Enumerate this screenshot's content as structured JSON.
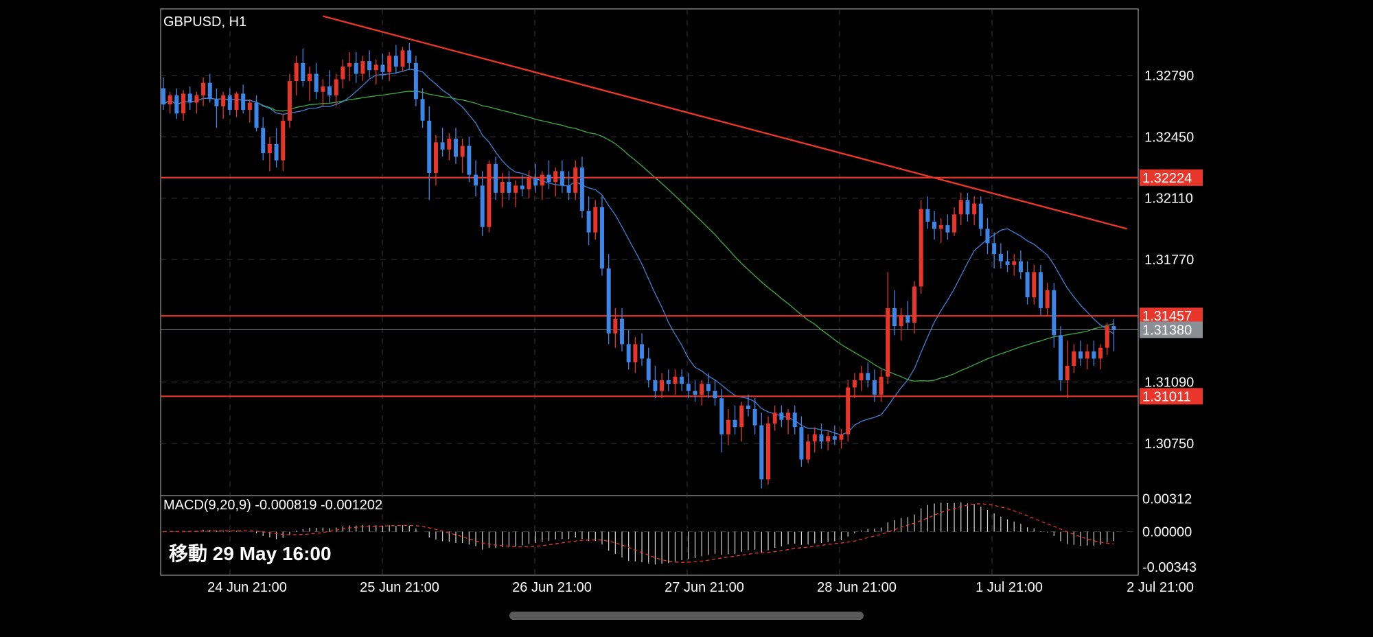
{
  "chart_data": {
    "type": "candlestick",
    "symbol_label": "GBPUSD, H1",
    "x_ticks": [
      "24 Jun 21:00",
      "25 Jun 21:00",
      "26 Jun 21:00",
      "27 Jun 21:00",
      "28 Jun 21:00",
      "1 Jul 21:00",
      "2 Jul 21:00"
    ],
    "price_axis": {
      "ylim": [
        1.3046,
        1.3316
      ],
      "ticks": [
        "1.32790",
        "1.32450",
        "1.32110",
        "1.31770",
        "1.31090",
        "1.30750"
      ],
      "tick_values": [
        1.3279,
        1.3245,
        1.3211,
        1.3177,
        1.3109,
        1.3075
      ]
    },
    "horizontal_levels": [
      {
        "label": "1.32224",
        "value": 1.32224,
        "color": "#e8362b"
      },
      {
        "label": "1.31457",
        "value": 1.31457,
        "color": "#e8362b"
      },
      {
        "label": "1.31011",
        "value": 1.31011,
        "color": "#e8362b"
      }
    ],
    "current_price": {
      "label": "1.31380",
      "value": 1.3138,
      "color": "#8a8f96"
    },
    "trendline": {
      "start": {
        "i": 24,
        "value": 1.3312
      },
      "end": {
        "i": 145,
        "value": 1.3194
      },
      "color": "#e8362b"
    },
    "colors": {
      "bull": "#e8362b",
      "bear": "#3d86e8",
      "ma_fast": "#3f78c8",
      "ma_slow": "#3ea042",
      "grid": "#3a3a3a"
    },
    "candles_ohlc": [
      [
        1.3272,
        1.3278,
        1.326,
        1.3263
      ],
      [
        1.3263,
        1.327,
        1.3258,
        1.3268
      ],
      [
        1.3268,
        1.3272,
        1.3255,
        1.3258
      ],
      [
        1.3258,
        1.3271,
        1.3254,
        1.3269
      ],
      [
        1.3269,
        1.3273,
        1.326,
        1.3264
      ],
      [
        1.3264,
        1.327,
        1.3258,
        1.3268
      ],
      [
        1.3268,
        1.3278,
        1.3262,
        1.3275
      ],
      [
        1.3275,
        1.328,
        1.3264,
        1.3266
      ],
      [
        1.3266,
        1.3272,
        1.325,
        1.3262
      ],
      [
        1.3262,
        1.327,
        1.3255,
        1.3268
      ],
      [
        1.3268,
        1.3272,
        1.3257,
        1.326
      ],
      [
        1.326,
        1.327,
        1.3256,
        1.3269
      ],
      [
        1.3269,
        1.3274,
        1.3258,
        1.326
      ],
      [
        1.326,
        1.3266,
        1.3253,
        1.3264
      ],
      [
        1.3264,
        1.3268,
        1.3248,
        1.325
      ],
      [
        1.325,
        1.3256,
        1.3232,
        1.3236
      ],
      [
        1.3236,
        1.3245,
        1.3226,
        1.3241
      ],
      [
        1.3241,
        1.325,
        1.3228,
        1.3232
      ],
      [
        1.3232,
        1.3258,
        1.3226,
        1.3254
      ],
      [
        1.3254,
        1.328,
        1.325,
        1.3276
      ],
      [
        1.3276,
        1.329,
        1.3268,
        1.3286
      ],
      [
        1.3286,
        1.3294,
        1.3273,
        1.3276
      ],
      [
        1.3276,
        1.3284,
        1.3265,
        1.328
      ],
      [
        1.328,
        1.3286,
        1.3266,
        1.327
      ],
      [
        1.327,
        1.3277,
        1.3262,
        1.3273
      ],
      [
        1.3273,
        1.3282,
        1.3264,
        1.3268
      ],
      [
        1.3268,
        1.328,
        1.3262,
        1.3277
      ],
      [
        1.3277,
        1.3288,
        1.3272,
        1.3284
      ],
      [
        1.3284,
        1.3292,
        1.3276,
        1.3286
      ],
      [
        1.3286,
        1.3292,
        1.3275,
        1.328
      ],
      [
        1.328,
        1.329,
        1.3276,
        1.3287
      ],
      [
        1.3287,
        1.3293,
        1.3278,
        1.3282
      ],
      [
        1.3282,
        1.3288,
        1.3274,
        1.3285
      ],
      [
        1.3285,
        1.3291,
        1.3277,
        1.3281
      ],
      [
        1.3281,
        1.3292,
        1.3276,
        1.329
      ],
      [
        1.329,
        1.3296,
        1.328,
        1.3284
      ],
      [
        1.3284,
        1.3295,
        1.3281,
        1.3293
      ],
      [
        1.3293,
        1.3297,
        1.3282,
        1.3286
      ],
      [
        1.3286,
        1.329,
        1.3262,
        1.3266
      ],
      [
        1.3266,
        1.3272,
        1.325,
        1.3254
      ],
      [
        1.3254,
        1.3262,
        1.321,
        1.3225
      ],
      [
        1.3225,
        1.3246,
        1.3218,
        1.3242
      ],
      [
        1.3242,
        1.325,
        1.3234,
        1.3238
      ],
      [
        1.3238,
        1.3247,
        1.3232,
        1.3244
      ],
      [
        1.3244,
        1.325,
        1.323,
        1.3234
      ],
      [
        1.3234,
        1.3244,
        1.3225,
        1.324
      ],
      [
        1.324,
        1.3245,
        1.322,
        1.3224
      ],
      [
        1.3224,
        1.3232,
        1.3212,
        1.3218
      ],
      [
        1.3218,
        1.3226,
        1.319,
        1.3195
      ],
      [
        1.3195,
        1.3232,
        1.3192,
        1.323
      ],
      [
        1.323,
        1.3234,
        1.321,
        1.3214
      ],
      [
        1.3214,
        1.3225,
        1.3206,
        1.322
      ],
      [
        1.322,
        1.3226,
        1.321,
        1.3214
      ],
      [
        1.3214,
        1.3221,
        1.3206,
        1.3218
      ],
      [
        1.3218,
        1.3224,
        1.3212,
        1.3216
      ],
      [
        1.3216,
        1.3226,
        1.3211,
        1.3222
      ],
      [
        1.3222,
        1.323,
        1.3214,
        1.3218
      ],
      [
        1.3218,
        1.3226,
        1.321,
        1.3224
      ],
      [
        1.3224,
        1.3232,
        1.3216,
        1.322
      ],
      [
        1.322,
        1.3228,
        1.3212,
        1.3226
      ],
      [
        1.3226,
        1.3232,
        1.3214,
        1.3218
      ],
      [
        1.3218,
        1.3226,
        1.321,
        1.3214
      ],
      [
        1.3214,
        1.3232,
        1.321,
        1.3228
      ],
      [
        1.3228,
        1.3234,
        1.32,
        1.3204
      ],
      [
        1.3204,
        1.3212,
        1.3185,
        1.3192
      ],
      [
        1.3192,
        1.321,
        1.3188,
        1.3206
      ],
      [
        1.3206,
        1.3212,
        1.3168,
        1.3172
      ],
      [
        1.3172,
        1.318,
        1.313,
        1.3136
      ],
      [
        1.3136,
        1.315,
        1.3128,
        1.3144
      ],
      [
        1.3144,
        1.315,
        1.3126,
        1.313
      ],
      [
        1.313,
        1.3138,
        1.3116,
        1.312
      ],
      [
        1.312,
        1.3134,
        1.3114,
        1.313
      ],
      [
        1.313,
        1.3136,
        1.3118,
        1.3122
      ],
      [
        1.3122,
        1.3128,
        1.3106,
        1.311
      ],
      [
        1.311,
        1.3118,
        1.31,
        1.3104
      ],
      [
        1.3104,
        1.3114,
        1.31,
        1.311
      ],
      [
        1.311,
        1.3116,
        1.3104,
        1.3108
      ],
      [
        1.3108,
        1.3116,
        1.3102,
        1.3112
      ],
      [
        1.3112,
        1.3116,
        1.3104,
        1.3108
      ],
      [
        1.3108,
        1.3114,
        1.31,
        1.3104
      ],
      [
        1.3104,
        1.311,
        1.3098,
        1.3102
      ],
      [
        1.3102,
        1.311,
        1.3096,
        1.3108
      ],
      [
        1.3108,
        1.3114,
        1.31,
        1.3104
      ],
      [
        1.3104,
        1.311,
        1.3096,
        1.31
      ],
      [
        1.31,
        1.3105,
        1.307,
        1.308
      ],
      [
        1.308,
        1.3094,
        1.3074,
        1.3088
      ],
      [
        1.3088,
        1.3096,
        1.308,
        1.3084
      ],
      [
        1.3084,
        1.3098,
        1.3076,
        1.3096
      ],
      [
        1.3096,
        1.3102,
        1.309,
        1.3094
      ],
      [
        1.3094,
        1.31,
        1.308,
        1.3085
      ],
      [
        1.3085,
        1.3092,
        1.305,
        1.3055
      ],
      [
        1.3055,
        1.309,
        1.3052,
        1.3086
      ],
      [
        1.3086,
        1.3096,
        1.3082,
        1.3092
      ],
      [
        1.3092,
        1.3096,
        1.3084,
        1.3088
      ],
      [
        1.3088,
        1.3094,
        1.308,
        1.3092
      ],
      [
        1.3092,
        1.3096,
        1.308,
        1.3084
      ],
      [
        1.3084,
        1.309,
        1.3062,
        1.3066
      ],
      [
        1.3066,
        1.308,
        1.3064,
        1.3076
      ],
      [
        1.3076,
        1.3084,
        1.307,
        1.308
      ],
      [
        1.308,
        1.3086,
        1.3072,
        1.3076
      ],
      [
        1.3076,
        1.3082,
        1.3071,
        1.3079
      ],
      [
        1.3079,
        1.3085,
        1.3074,
        1.3077
      ],
      [
        1.3077,
        1.3083,
        1.3072,
        1.308
      ],
      [
        1.308,
        1.311,
        1.3076,
        1.3106
      ],
      [
        1.3106,
        1.3114,
        1.31,
        1.311
      ],
      [
        1.311,
        1.3118,
        1.3104,
        1.3114
      ],
      [
        1.3114,
        1.312,
        1.3106,
        1.311
      ],
      [
        1.311,
        1.3116,
        1.3098,
        1.3102
      ],
      [
        1.3102,
        1.3116,
        1.3098,
        1.3112
      ],
      [
        1.3112,
        1.317,
        1.3108,
        1.315
      ],
      [
        1.315,
        1.316,
        1.3135,
        1.314
      ],
      [
        1.314,
        1.315,
        1.3132,
        1.3146
      ],
      [
        1.3146,
        1.3154,
        1.3138,
        1.3142
      ],
      [
        1.3142,
        1.3165,
        1.3136,
        1.3162
      ],
      [
        1.3162,
        1.321,
        1.3158,
        1.3205
      ],
      [
        1.3205,
        1.3212,
        1.3194,
        1.3198
      ],
      [
        1.3198,
        1.3204,
        1.3188,
        1.3194
      ],
      [
        1.3194,
        1.32,
        1.3186,
        1.3196
      ],
      [
        1.3196,
        1.3202,
        1.3188,
        1.3192
      ],
      [
        1.3192,
        1.3206,
        1.319,
        1.3202
      ],
      [
        1.3202,
        1.3214,
        1.3196,
        1.321
      ],
      [
        1.321,
        1.3214,
        1.3198,
        1.3202
      ],
      [
        1.3202,
        1.3212,
        1.3196,
        1.3208
      ],
      [
        1.3208,
        1.3212,
        1.319,
        1.3194
      ],
      [
        1.3194,
        1.32,
        1.318,
        1.3186
      ],
      [
        1.3186,
        1.3192,
        1.3172,
        1.318
      ],
      [
        1.318,
        1.3186,
        1.3172,
        1.3176
      ],
      [
        1.3176,
        1.3182,
        1.317,
        1.3174
      ],
      [
        1.3174,
        1.318,
        1.3168,
        1.3176
      ],
      [
        1.3176,
        1.3182,
        1.3166,
        1.317
      ],
      [
        1.317,
        1.3176,
        1.3152,
        1.3156
      ],
      [
        1.3156,
        1.3174,
        1.3152,
        1.317
      ],
      [
        1.317,
        1.3174,
        1.3146,
        1.315
      ],
      [
        1.315,
        1.3164,
        1.3146,
        1.316
      ],
      [
        1.316,
        1.3164,
        1.3128,
        1.3135
      ],
      [
        1.3135,
        1.314,
        1.3104,
        1.311
      ],
      [
        1.311,
        1.3132,
        1.31,
        1.3118
      ],
      [
        1.3118,
        1.313,
        1.3114,
        1.3126
      ],
      [
        1.3126,
        1.3132,
        1.3118,
        1.3122
      ],
      [
        1.3122,
        1.313,
        1.3116,
        1.3126
      ],
      [
        1.3126,
        1.3132,
        1.3118,
        1.3122
      ],
      [
        1.3122,
        1.313,
        1.3116,
        1.3128
      ],
      [
        1.3128,
        1.3142,
        1.3124,
        1.314
      ],
      [
        1.314,
        1.3144,
        1.3126,
        1.3138
      ]
    ],
    "macd": {
      "label": "MACD(9,20,9) -0.000819 -0.001202",
      "ylim": [
        -0.0041,
        0.0034
      ],
      "ticks": [
        "0.00312",
        "0.00000",
        "-0.00343"
      ],
      "tick_values": [
        0.00312,
        0.0,
        -0.00343
      ]
    },
    "crosshair_label": "移動 29 May 16:00"
  }
}
